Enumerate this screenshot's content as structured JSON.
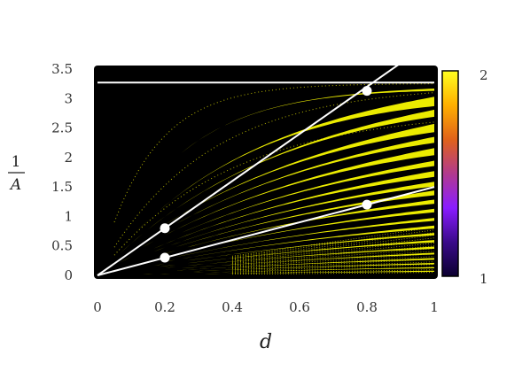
{
  "chart_data": {
    "type": "heatmap",
    "xlabel": "d",
    "ylabel": {
      "numerator": "1",
      "denominator": "A"
    },
    "xlim": [
      0,
      1
    ],
    "ylim": [
      0,
      3.5
    ],
    "x_ticks": [
      "0",
      "0.2",
      "0.4",
      "0.6",
      "0.8",
      "1"
    ],
    "y_ticks": [
      "0",
      "0.5",
      "1",
      "1.5",
      "2",
      "2.5",
      "3",
      "3.5"
    ],
    "colorbar": {
      "min_label": "1",
      "max_label": "2",
      "colors": [
        "#0b0030",
        "#3a0a8a",
        "#8a1cff",
        "#b23a8e",
        "#e0621a",
        "#ffb000",
        "#ffff20"
      ]
    },
    "background_color": "#000000",
    "band_color": "#ffff00",
    "reference_line": {
      "x": [
        0,
        1
      ],
      "y": [
        3.27,
        3.27
      ]
    },
    "lines": [
      {
        "x": [
          0,
          0.9
        ],
        "y": [
          0,
          3.6
        ]
      },
      {
        "x": [
          0,
          1
        ],
        "y": [
          0,
          1.5
        ]
      }
    ],
    "points": [
      {
        "x": 0.2,
        "y": 0.8
      },
      {
        "x": 0.2,
        "y": 0.3
      },
      {
        "x": 0.8,
        "y": 3.13
      },
      {
        "x": 0.8,
        "y": 1.2
      }
    ]
  }
}
